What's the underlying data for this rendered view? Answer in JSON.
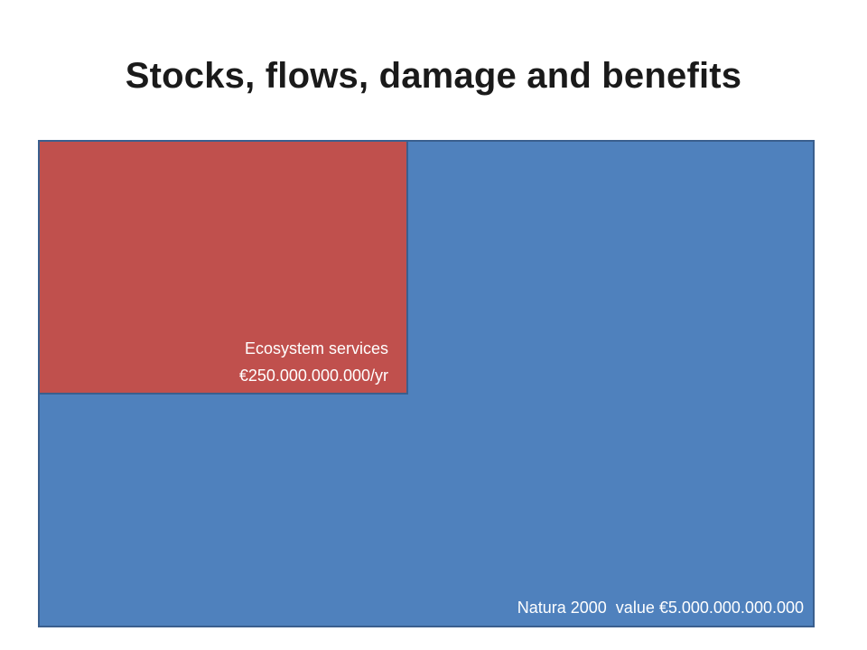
{
  "title": "Stocks, flows, damage and benefits",
  "flow": {
    "line1": "Ecosystem services",
    "line2": "€250.000.000.000/yr"
  },
  "stock": {
    "label": "Natura 2000  value €5.000.000.000.000"
  },
  "colors": {
    "stock_fill": "#4f81bd",
    "flow_fill": "#c0504d",
    "border": "#3a5f8e",
    "label_text": "#ffffff"
  }
}
